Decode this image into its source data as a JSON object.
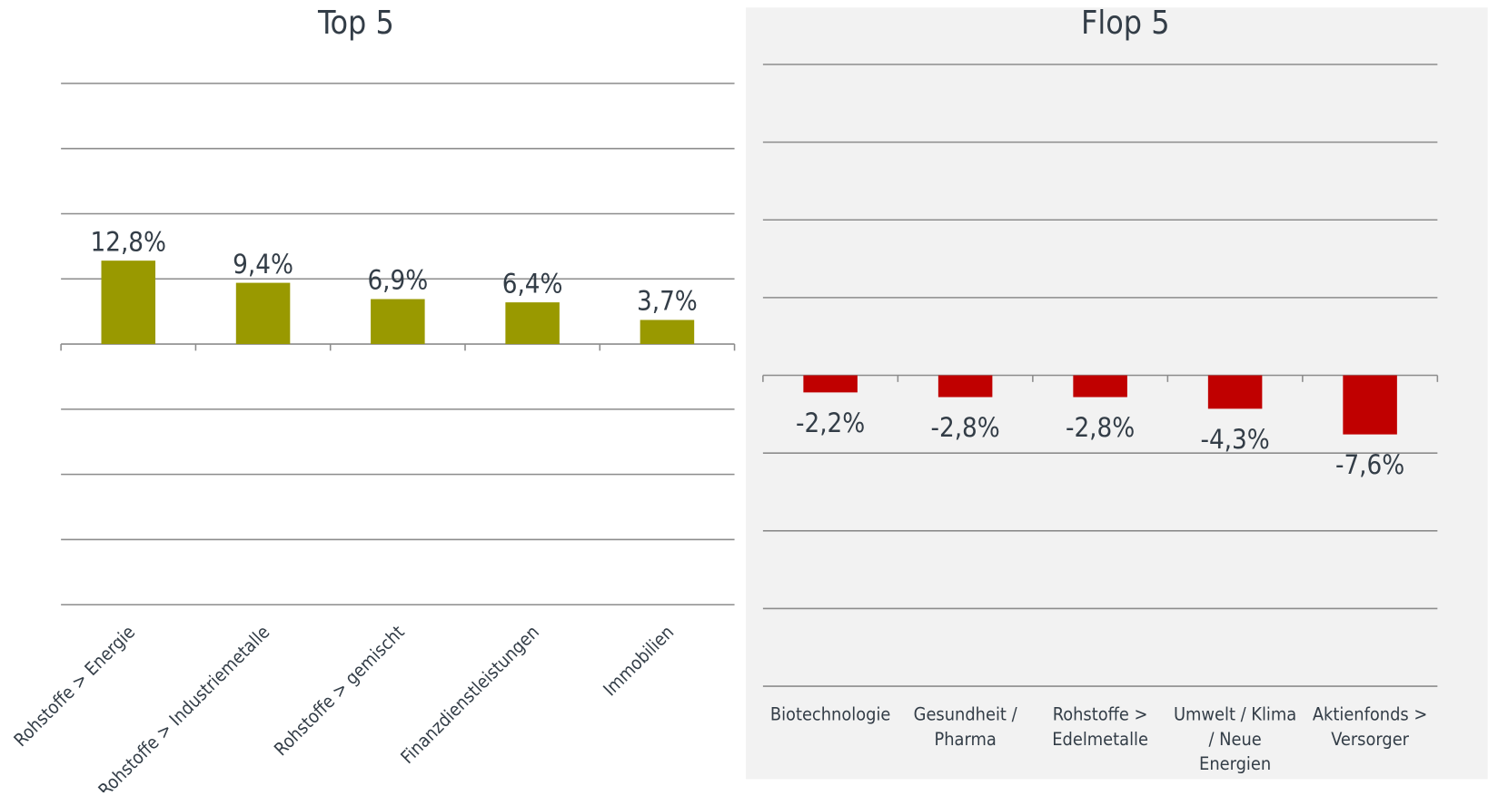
{
  "chart_data": [
    {
      "type": "bar",
      "title": "Top 5",
      "categories": [
        "Rohstoffe > Energie",
        "Rohstoffe > Industriemetalle",
        "Rohstoffe > gemischt",
        "Finanzdienstleistungen",
        "Immobilien"
      ],
      "values": [
        12.8,
        9.4,
        6.9,
        6.4,
        3.7
      ],
      "value_labels": [
        "12,8%",
        "9,4%",
        "6,9%",
        "6,4%",
        "3,7%"
      ],
      "color": "#999900",
      "ylim": [
        -40,
        40
      ],
      "yticks": [
        -40,
        -30,
        -20,
        -10,
        0,
        10,
        20,
        30,
        40
      ],
      "grid": true,
      "label_rotation": -45
    },
    {
      "type": "bar",
      "title": "Flop 5",
      "categories": [
        "Biotechnologie",
        "Gesundheit / Pharma",
        "Rohstoffe > Edelmetalle",
        "Umwelt / Klima / Neue Energien",
        "Aktienfonds > Versorger"
      ],
      "values": [
        -2.2,
        -2.8,
        -2.8,
        -4.3,
        -7.6
      ],
      "value_labels": [
        "-2,2%",
        "-2,8%",
        "-2,8%",
        "-4,3%",
        "-7,6%"
      ],
      "color": "#c00000",
      "ylim": [
        -40,
        40
      ],
      "yticks": [
        -40,
        -30,
        -20,
        -10,
        0,
        10,
        20,
        30,
        40
      ],
      "grid": true,
      "background": "#f2f2f2",
      "label_rotation": 0
    }
  ]
}
